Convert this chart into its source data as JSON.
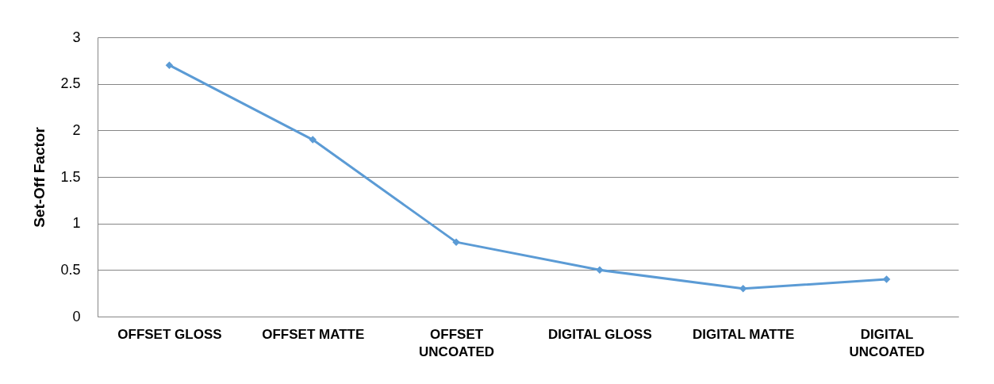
{
  "chart_data": {
    "type": "line",
    "ylabel": "Set-Off Factor",
    "categories": [
      "OFFSET GLOSS",
      "OFFSET MATTE",
      "OFFSET UNCOATED",
      "DIGITAL GLOSS",
      "DIGITAL MATTE",
      "DIGITAL UNCOATED"
    ],
    "series": [
      {
        "color": "#5b9bd5",
        "values": [
          2.7,
          1.9,
          0.8,
          0.5,
          0.3,
          0.4
        ]
      }
    ],
    "ylim": [
      0,
      3
    ],
    "yticks": [
      0,
      0.5,
      1,
      1.5,
      2,
      2.5,
      3
    ],
    "grid": "y",
    "marker": "diamond",
    "line_style": "solid",
    "legend": false
  }
}
